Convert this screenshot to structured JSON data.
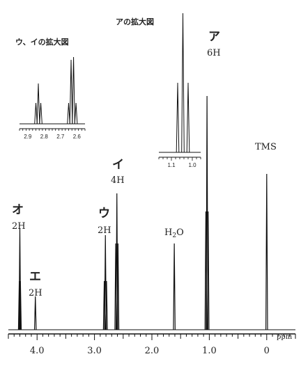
{
  "chart_data": {
    "type": "line",
    "x_unit": "ppm",
    "xlim": [
      4.5,
      -0.5
    ],
    "x_ticks": [
      {
        "value": 4.0,
        "label": "4.0"
      },
      {
        "value": 3.0,
        "label": "3.0"
      },
      {
        "value": 2.0,
        "label": "2.0"
      },
      {
        "value": 1.0,
        "label": "1.0"
      },
      {
        "value": 0.0,
        "label": "0"
      }
    ],
    "peaks": [
      {
        "label": "オ",
        "integration": "2H",
        "center": 4.3,
        "lines": [
          {
            "shift": 4.31,
            "h": 0.35
          },
          {
            "shift": 4.29,
            "h": 0.35
          },
          {
            "shift": 4.3,
            "h": 0.73
          }
        ]
      },
      {
        "label": "エ",
        "integration": "2H",
        "center": 4.03,
        "lines": [
          {
            "shift": 4.03,
            "h": 0.24
          }
        ]
      },
      {
        "label": "ウ",
        "integration": "2H",
        "center": 2.81,
        "lines": [
          {
            "shift": 2.83,
            "h": 0.35
          },
          {
            "shift": 2.81,
            "h": 0.68
          },
          {
            "shift": 2.79,
            "h": 0.35
          }
        ]
      },
      {
        "label": "イ",
        "integration": "4H",
        "center": 2.61,
        "lines": [
          {
            "shift": 2.63,
            "h": 0.62
          },
          {
            "shift": 2.61,
            "h": 0.98
          },
          {
            "shift": 2.59,
            "h": 0.62
          }
        ]
      },
      {
        "label": "H2O",
        "integration": "",
        "center": 1.61,
        "lines": [
          {
            "shift": 1.61,
            "h": 0.62
          }
        ]
      },
      {
        "label": "ア",
        "integration": "6H",
        "center": 1.04,
        "lines": [
          {
            "shift": 1.06,
            "h": 0.85
          },
          {
            "shift": 1.04,
            "h": 1.68
          },
          {
            "shift": 1.02,
            "h": 0.85
          }
        ]
      },
      {
        "label": "TMS",
        "integration": "",
        "center": 0.0,
        "lines": [
          {
            "shift": 0.0,
            "h": 1.12
          }
        ]
      }
    ],
    "insets": [
      {
        "title": "アの拡大図",
        "x_ticks": [
          {
            "value": 1.1,
            "label": "1.1"
          },
          {
            "value": 1.0,
            "label": "1.0"
          }
        ]
      },
      {
        "title": "ウ、イの拡大図",
        "x_ticks": [
          {
            "value": 2.9,
            "label": "2.9"
          },
          {
            "value": 2.8,
            "label": "2.8"
          },
          {
            "value": 2.7,
            "label": "2.7"
          },
          {
            "value": 2.6,
            "label": "2.6"
          }
        ]
      }
    ]
  },
  "labels": {
    "o": {
      "char": "オ",
      "sub": "2H"
    },
    "e": {
      "char": "エ",
      "sub": "2H"
    },
    "u": {
      "char": "ウ",
      "sub": "2H"
    },
    "i": {
      "char": "イ",
      "sub": "4H"
    },
    "a": {
      "char": "ア",
      "sub": "6H"
    },
    "h2o": {
      "main": "H",
      "subscript": "2",
      "tail": "O"
    },
    "tms": "TMS",
    "unit": "ppm"
  },
  "colors": {
    "line": "#111111",
    "text": "#222222"
  }
}
